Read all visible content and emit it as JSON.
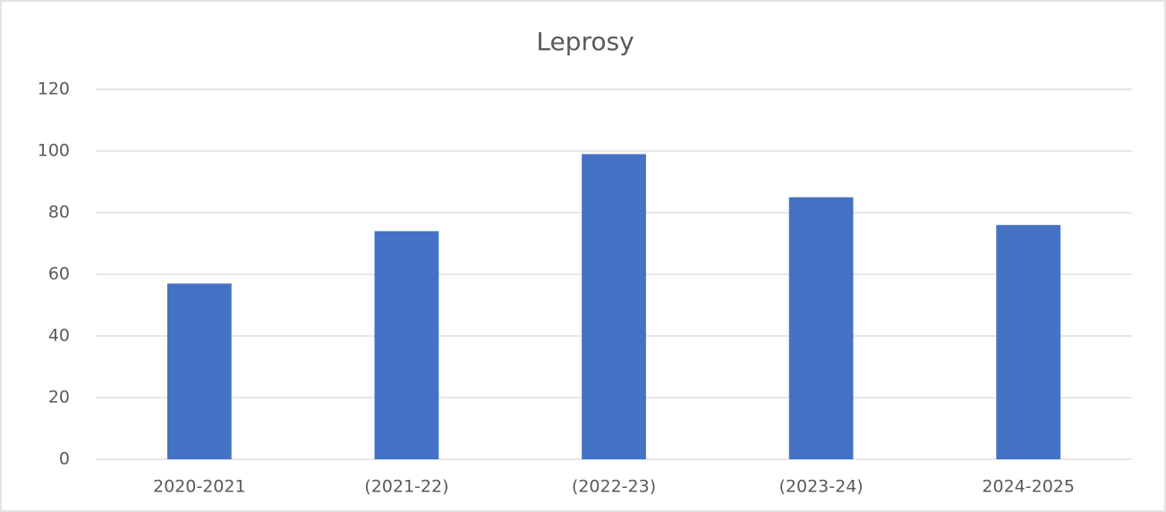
{
  "chart_data": {
    "type": "bar",
    "title": "Leprosy",
    "categories": [
      "2020-2021",
      "(2021-22)",
      "(2022-23)",
      "(2023-24)",
      "2024-2025"
    ],
    "values": [
      57,
      74,
      99,
      85,
      76
    ],
    "color": "#4472c4",
    "ylim": [
      0,
      120
    ],
    "yticks": [
      0,
      20,
      40,
      60,
      80,
      100,
      120
    ],
    "grid": true
  }
}
